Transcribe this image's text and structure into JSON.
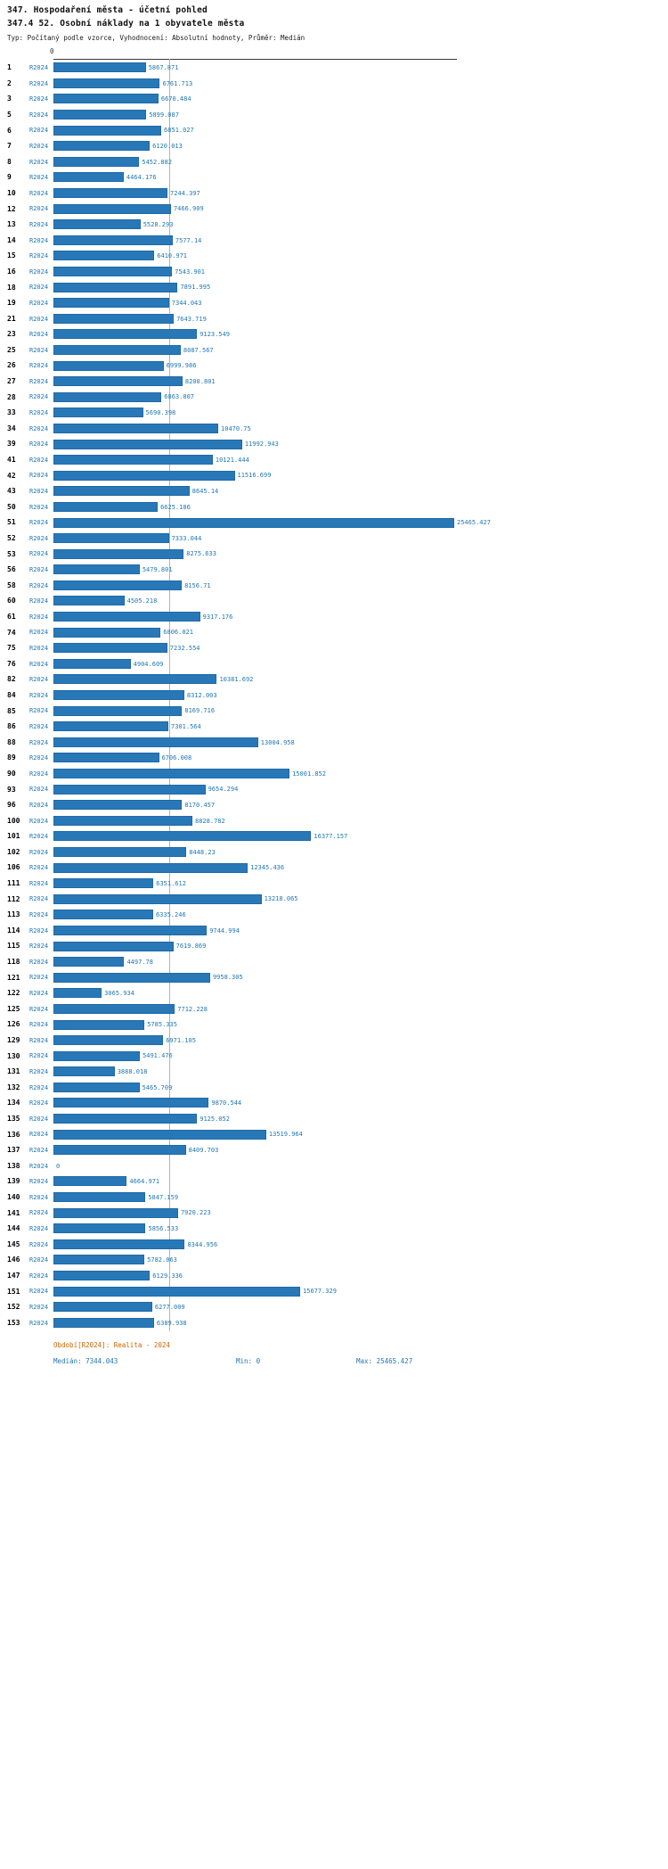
{
  "header": {
    "title": "347. Hospodaření města - účetní pohled",
    "subtitle": "347.4 52. Osobní náklady na 1 obyvatele města",
    "meta": "Typ: Počítaný podle vzorce, Vyhodnocení: Absolutní hodnoty, Průměr: Medián"
  },
  "chart_data": {
    "type": "bar",
    "orientation": "horizontal",
    "title": "347.4 52. Osobní náklady na 1 obyvatele města",
    "series_label": "R2024",
    "axis_zero_label": "0",
    "median": 7344.043,
    "min": 0,
    "max": 25465.427,
    "rows_format": [
      "row_id",
      "value"
    ],
    "rows": [
      [
        "1",
        "5867.871"
      ],
      [
        "2",
        "6761.713"
      ],
      [
        "3",
        "6670.484"
      ],
      [
        "5",
        "5899.087"
      ],
      [
        "6",
        "6851.027"
      ],
      [
        "7",
        "6120.013"
      ],
      [
        "8",
        "5452.882"
      ],
      [
        "9",
        "4464.176"
      ],
      [
        "10",
        "7244.397"
      ],
      [
        "12",
        "7466.909"
      ],
      [
        "13",
        "5528.293"
      ],
      [
        "14",
        "7577.14"
      ],
      [
        "15",
        "6410.971"
      ],
      [
        "16",
        "7543.901"
      ],
      [
        "18",
        "7891.995"
      ],
      [
        "19",
        "7344.043"
      ],
      [
        "21",
        "7643.719"
      ],
      [
        "23",
        "9123.549"
      ],
      [
        "25",
        "8087.567"
      ],
      [
        "26",
        "6999.986"
      ],
      [
        "27",
        "8200.801"
      ],
      [
        "28",
        "6863.807"
      ],
      [
        "33",
        "5690.398"
      ],
      [
        "34",
        "10470.75"
      ],
      [
        "39",
        "11992.943"
      ],
      [
        "41",
        "10121.444"
      ],
      [
        "42",
        "11516.699"
      ],
      [
        "43",
        "8645.14"
      ],
      [
        "50",
        "6625.186"
      ],
      [
        "51",
        "25465.427"
      ],
      [
        "52",
        "7333.044"
      ],
      [
        "53",
        "8275.633"
      ],
      [
        "56",
        "5479.801"
      ],
      [
        "58",
        "8156.71"
      ],
      [
        "60",
        "4505.218"
      ],
      [
        "61",
        "9317.176"
      ],
      [
        "74",
        "6806.021"
      ],
      [
        "75",
        "7232.554"
      ],
      [
        "76",
        "4904.609"
      ],
      [
        "82",
        "10381.692"
      ],
      [
        "84",
        "8312.003"
      ],
      [
        "85",
        "8169.716"
      ],
      [
        "86",
        "7301.564"
      ],
      [
        "88",
        "13004.958"
      ],
      [
        "89",
        "6706.008"
      ],
      [
        "90",
        "15001.852"
      ],
      [
        "93",
        "9654.294"
      ],
      [
        "96",
        "8170.457"
      ],
      [
        "100",
        "8828.782"
      ],
      [
        "101",
        "16377.157"
      ],
      [
        "102",
        "8448.23"
      ],
      [
        "106",
        "12345.436"
      ],
      [
        "111",
        "6351.612"
      ],
      [
        "112",
        "13218.065"
      ],
      [
        "113",
        "6335.246"
      ],
      [
        "114",
        "9744.994"
      ],
      [
        "115",
        "7619.869"
      ],
      [
        "118",
        "4497.78"
      ],
      [
        "121",
        "9958.305"
      ],
      [
        "122",
        "3065.934"
      ],
      [
        "125",
        "7712.228"
      ],
      [
        "126",
        "5785.335"
      ],
      [
        "129",
        "6971.105"
      ],
      [
        "130",
        "5491.476"
      ],
      [
        "131",
        "3888.018"
      ],
      [
        "132",
        "5465.709"
      ],
      [
        "134",
        "9870.544"
      ],
      [
        "135",
        "9125.052"
      ],
      [
        "136",
        "13519.964"
      ],
      [
        "137",
        "8409.703"
      ],
      [
        "138",
        "0"
      ],
      [
        "139",
        "4664.971"
      ],
      [
        "140",
        "5847.159"
      ],
      [
        "141",
        "7920.223"
      ],
      [
        "144",
        "5856.533"
      ],
      [
        "145",
        "8344.956"
      ],
      [
        "146",
        "5782.063"
      ],
      [
        "147",
        "6129.336"
      ],
      [
        "151",
        "15677.329"
      ],
      [
        "152",
        "6277.009"
      ],
      [
        "153",
        "6389.938"
      ]
    ],
    "colors": {
      "bar": "#2878b8",
      "value_text": "#1f77b4",
      "series_text": "#1f77b4",
      "median_line": "#b3b3b3",
      "period_text": "#cc6600"
    },
    "legend_position": "none",
    "grid": "median-line-only"
  },
  "footer": {
    "period": "Období[R2024]: Realita - 2024",
    "median": "Medián: 7344.043",
    "min": "Min: 0",
    "max": "Max: 25465.427"
  }
}
